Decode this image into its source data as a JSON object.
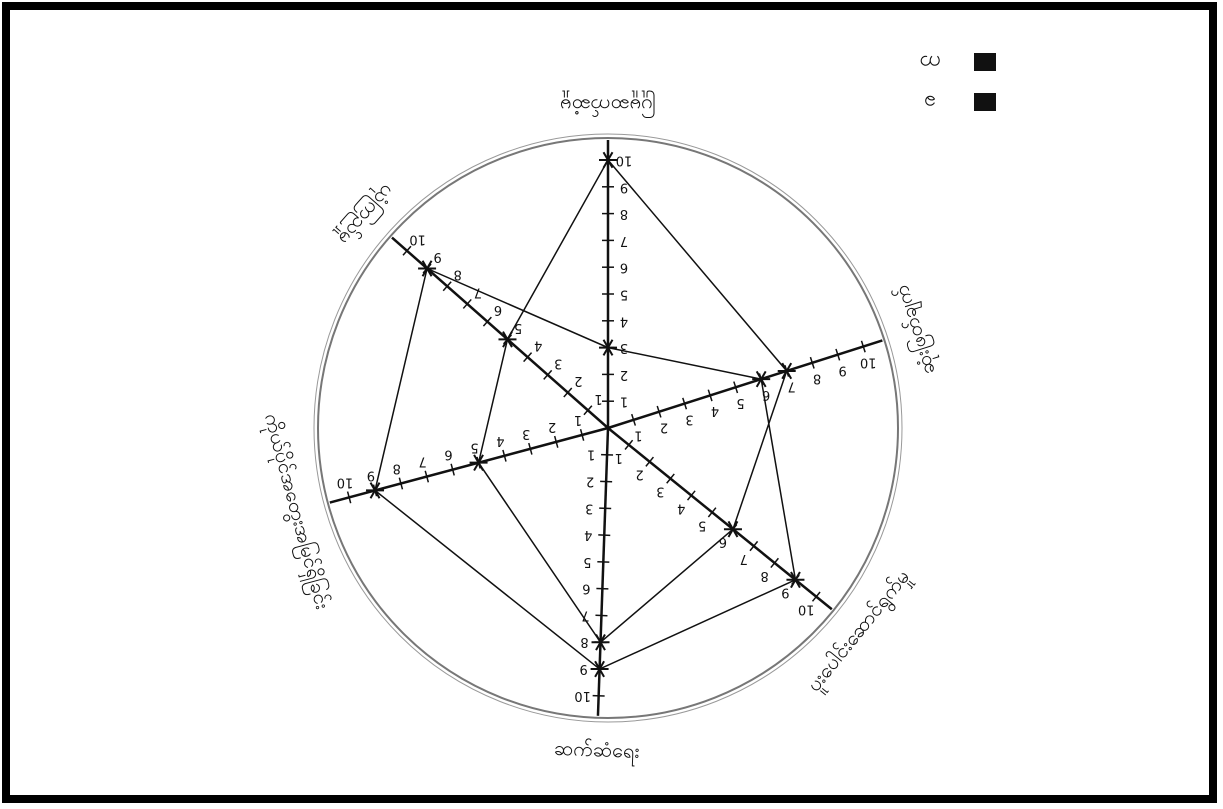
{
  "chart_data": {
    "type": "radar",
    "categories": [
      "ပြုမူဆက်ဆံမှု",
      "ဆုံးဖြတ်ချက်",
      "ပူးပေါင်းဆောင်ရွက်မှု",
      "ဆက်ဆံရေး",
      "ကိုယ်ပိုင်အတွေးအမြင်ရှိခြင်း",
      "ယုံကြည်မှု"
    ],
    "series": [
      {
        "name": "က",
        "color": "#111111",
        "values": [
          10,
          7,
          6,
          8,
          5,
          5
        ]
      },
      {
        "name": "ခ",
        "color": "#111111",
        "values": [
          3,
          6,
          9,
          9,
          9,
          9
        ]
      }
    ],
    "rlim": [
      0,
      10
    ],
    "rticks": [
      1,
      2,
      3,
      4,
      5,
      6,
      7,
      8,
      9,
      10
    ],
    "legend": "upper-right"
  }
}
